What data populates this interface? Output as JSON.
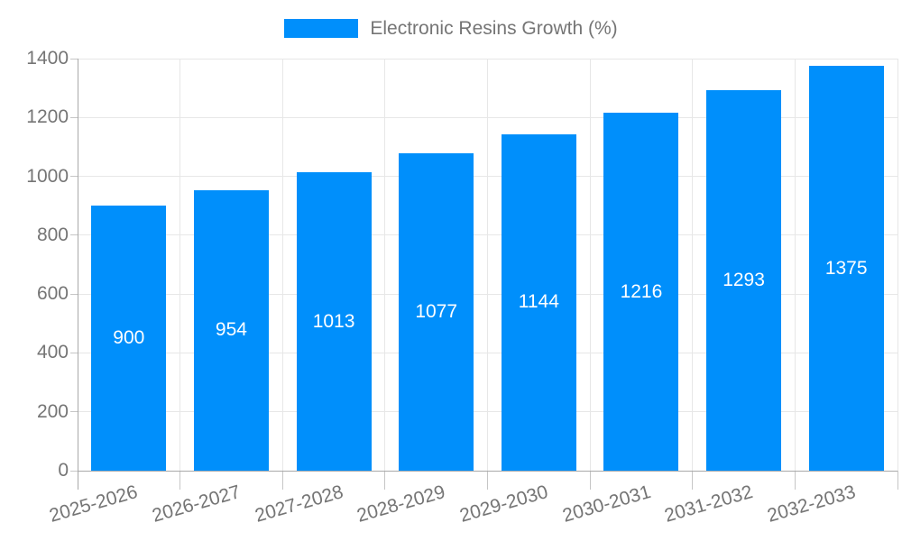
{
  "chart_data": {
    "type": "bar",
    "title": "",
    "xlabel": "",
    "ylabel": "",
    "categories": [
      "2025-2026",
      "2026-2027",
      "2027-2028",
      "2028-2029",
      "2029-2030",
      "2030-2031",
      "2031-2032",
      "2032-2033"
    ],
    "series": [
      {
        "name": "Electronic Resins Growth (%)",
        "values": [
          900,
          954,
          1013,
          1077,
          1144,
          1216,
          1293,
          1375
        ]
      }
    ],
    "bar_value_labels": [
      "900",
      "954",
      "1013",
      "1077",
      "1144",
      "1216",
      "1293",
      "1375"
    ],
    "ylim": [
      0,
      1400
    ],
    "yticks": [
      0,
      200,
      400,
      600,
      800,
      1000,
      1200,
      1400
    ],
    "ytick_labels": [
      "0",
      "200",
      "400",
      "600",
      "800",
      "1000",
      "1200",
      "1400"
    ],
    "grid": true,
    "legend_position": "top",
    "colors": {
      "bar": "#008FFB",
      "bar_label": "#FFFFFF",
      "axis_text": "#757575",
      "grid_line": "#E7E7E7",
      "axis_line": "#A9A9A9",
      "tick_line": "#C6C6C6",
      "background": "#FFFFFF"
    }
  }
}
